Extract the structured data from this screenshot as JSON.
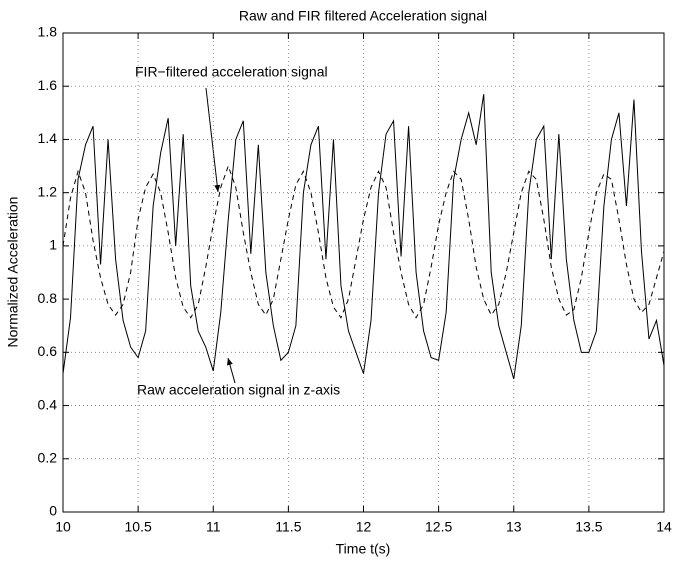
{
  "chart_data": {
    "type": "line",
    "title": "Raw and FIR filtered Acceleration signal",
    "xlabel": "Time t(s)",
    "ylabel": "Normalized Acceleration",
    "annotations": [
      "FIR−filtered acceleration signal",
      "Raw acceleration signal in z-axis"
    ],
    "x": [
      10.0,
      10.05,
      10.1,
      10.15,
      10.2,
      10.25,
      10.3,
      10.35,
      10.4,
      10.45,
      10.5,
      10.55,
      10.6,
      10.65,
      10.7,
      10.75,
      10.8,
      10.85,
      10.9,
      10.95,
      11.0,
      11.05,
      11.1,
      11.15,
      11.2,
      11.25,
      11.3,
      11.35,
      11.4,
      11.45,
      11.5,
      11.55,
      11.6,
      11.65,
      11.7,
      11.75,
      11.8,
      11.85,
      11.9,
      11.95,
      12.0,
      12.05,
      12.1,
      12.15,
      12.2,
      12.25,
      12.3,
      12.35,
      12.4,
      12.45,
      12.5,
      12.55,
      12.6,
      12.65,
      12.7,
      12.75,
      12.8,
      12.85,
      12.9,
      12.95,
      13.0,
      13.05,
      13.1,
      13.15,
      13.2,
      13.25,
      13.3,
      13.35,
      13.4,
      13.45,
      13.5,
      13.55,
      13.6,
      13.65,
      13.7,
      13.75,
      13.8,
      13.85,
      13.9,
      13.95,
      14.0
    ],
    "series": [
      {
        "color": "#000000",
        "dash": false,
        "values": [
          0.52,
          0.73,
          1.25,
          1.38,
          1.45,
          0.93,
          1.4,
          0.95,
          0.72,
          0.62,
          0.58,
          0.68,
          1.15,
          1.35,
          1.48,
          1.0,
          1.42,
          0.85,
          0.68,
          0.62,
          0.53,
          0.75,
          1.1,
          1.4,
          1.47,
          0.97,
          1.38,
          0.9,
          0.7,
          0.57,
          0.6,
          0.7,
          1.2,
          1.38,
          1.45,
          0.95,
          1.4,
          0.85,
          0.68,
          0.6,
          0.52,
          0.72,
          1.2,
          1.42,
          1.47,
          0.96,
          1.45,
          0.9,
          0.68,
          0.58,
          0.57,
          0.75,
          1.25,
          1.4,
          1.5,
          1.38,
          1.57,
          0.9,
          0.7,
          0.6,
          0.5,
          0.7,
          1.2,
          1.4,
          1.45,
          0.95,
          1.42,
          0.95,
          0.72,
          0.6,
          0.6,
          0.68,
          1.15,
          1.4,
          1.5,
          1.15,
          1.55,
          0.98,
          0.65,
          0.72,
          0.55
        ]
      },
      {
        "color": "#000000",
        "dash": true,
        "values": [
          1.0,
          1.18,
          1.28,
          1.2,
          1.02,
          0.88,
          0.78,
          0.74,
          0.78,
          0.9,
          1.1,
          1.22,
          1.27,
          1.2,
          1.05,
          0.88,
          0.77,
          0.73,
          0.78,
          0.92,
          1.08,
          1.22,
          1.3,
          1.22,
          1.05,
          0.9,
          0.78,
          0.74,
          0.8,
          0.95,
          1.1,
          1.23,
          1.28,
          1.2,
          1.05,
          0.88,
          0.77,
          0.73,
          0.8,
          0.95,
          1.1,
          1.22,
          1.28,
          1.22,
          1.05,
          0.9,
          0.78,
          0.73,
          0.78,
          0.92,
          1.08,
          1.2,
          1.28,
          1.25,
          1.1,
          0.92,
          0.8,
          0.74,
          0.78,
          0.9,
          1.05,
          1.2,
          1.28,
          1.25,
          1.1,
          0.92,
          0.8,
          0.74,
          0.76,
          0.88,
          1.05,
          1.2,
          1.27,
          1.25,
          1.1,
          0.93,
          0.8,
          0.75,
          0.78,
          0.88,
          0.98
        ]
      }
    ],
    "xlim": [
      10,
      14
    ],
    "xticks": [
      10,
      10.5,
      11,
      11.5,
      12,
      12.5,
      13,
      13.5,
      14
    ],
    "ylim": [
      0,
      1.8
    ],
    "yticks": [
      0,
      0.2,
      0.4,
      0.6,
      0.8,
      1,
      1.2,
      1.4,
      1.6,
      1.8
    ],
    "grid": true
  }
}
